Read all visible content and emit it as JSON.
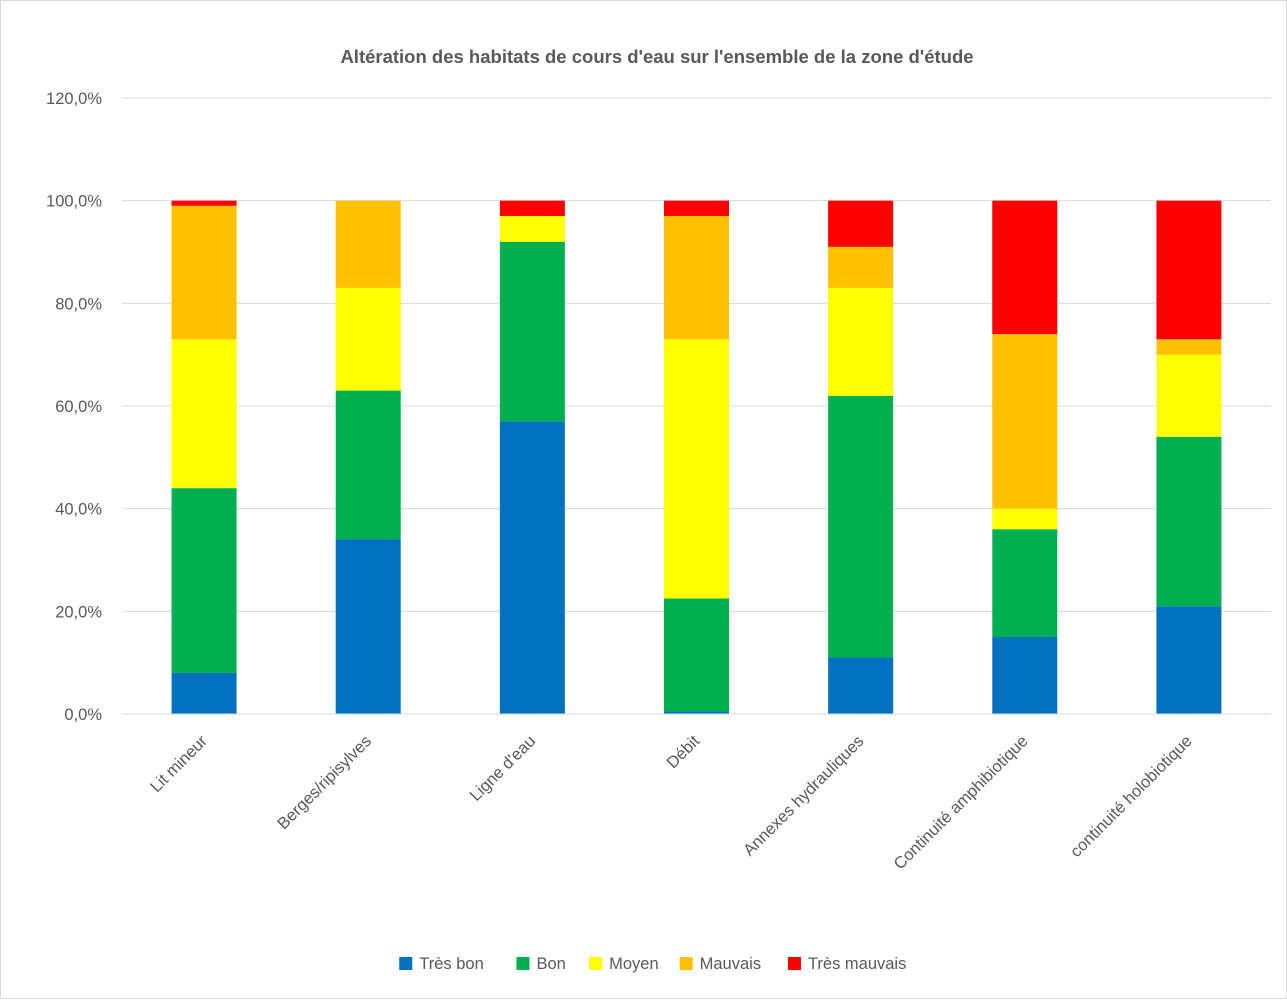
{
  "chart_data": {
    "type": "bar",
    "stacked": true,
    "title": "Altération des habitats de cours d'eau sur l'ensemble de la zone d'étude",
    "xlabel": "",
    "ylabel": "",
    "ylim": [
      0,
      120
    ],
    "yticks": [
      "0,0%",
      "20,0%",
      "40,0%",
      "60,0%",
      "80,0%",
      "100,0%",
      "120,0%"
    ],
    "grid": true,
    "legend_position": "bottom",
    "categories": [
      "Lit mineur",
      "Berges/ripisylves",
      "Ligne d'eau",
      "Débit",
      "Annexes hydrauliques",
      "Continuité amphibiotique",
      "continuité holobiotique"
    ],
    "series": [
      {
        "name": "Très bon",
        "color": "#0070c0",
        "values": [
          8,
          34,
          57,
          0.5,
          11,
          15,
          21
        ]
      },
      {
        "name": "Bon",
        "color": "#00b050",
        "values": [
          36,
          29,
          35,
          22,
          51,
          21,
          33
        ]
      },
      {
        "name": "Moyen",
        "color": "#ffff00",
        "values": [
          29,
          20,
          5,
          50.5,
          21,
          4,
          16
        ]
      },
      {
        "name": "Mauvais",
        "color": "#ffc000",
        "values": [
          26,
          17,
          0,
          24,
          8,
          34,
          3
        ]
      },
      {
        "name": "Très mauvais",
        "color": "#ff0000",
        "values": [
          1,
          0,
          3,
          3,
          9,
          26,
          27
        ]
      }
    ]
  }
}
